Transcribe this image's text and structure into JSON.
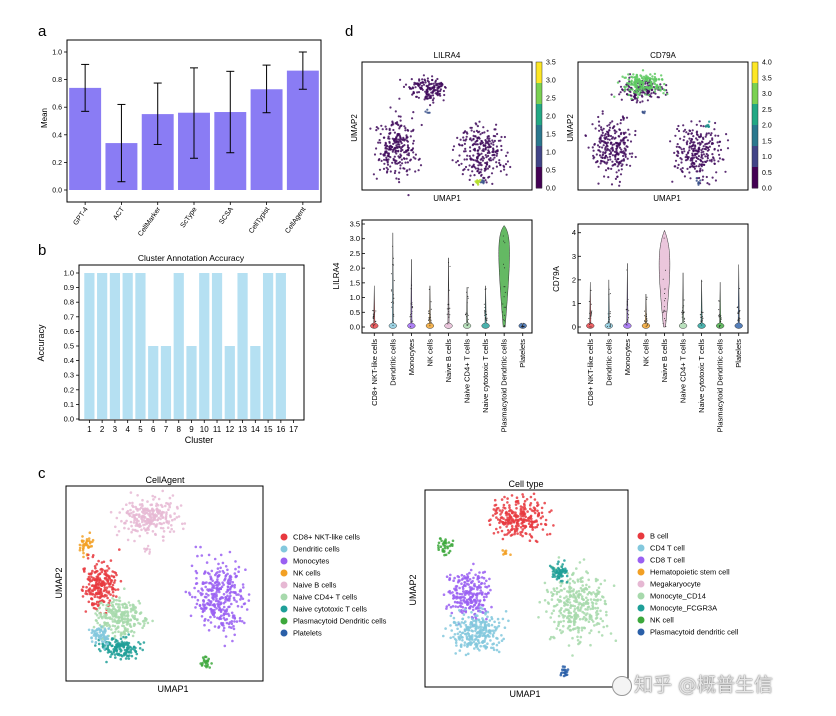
{
  "panels": {
    "a": {
      "letter": "a"
    },
    "b": {
      "letter": "b"
    },
    "c": {
      "letter": "c"
    },
    "d": {
      "letter": "d"
    }
  },
  "watermark": {
    "text": "知乎 @概普生信"
  },
  "colors": {
    "bar_a": "#8a7cf4",
    "bar_b": "#a8daf0",
    "cellagent_palette": [
      "#e8393f",
      "#83c8dd",
      "#9a60f2",
      "#f2a024",
      "#e6b8d3",
      "#a7d9ac",
      "#1e9f98",
      "#3da83c",
      "#2a5fa8"
    ],
    "celltype_palette": [
      "#e8393f",
      "#83c8dd",
      "#9a60f2",
      "#f2a024",
      "#e6b8d3",
      "#a7d9ac",
      "#1e9f98",
      "#3da83c",
      "#2a5fa8"
    ]
  },
  "chart_data": [
    {
      "id": "a",
      "type": "bar",
      "title": "",
      "categories": [
        "GPT-4",
        "ACT",
        "CellMarker",
        "ScType",
        "SCSA",
        "CellTypist",
        "CellAgent"
      ],
      "values": [
        0.74,
        0.34,
        0.55,
        0.56,
        0.565,
        0.73,
        0.865
      ],
      "err_low": [
        0.57,
        0.06,
        0.33,
        0.23,
        0.27,
        0.56,
        0.73
      ],
      "err_high": [
        0.91,
        0.62,
        0.775,
        0.885,
        0.86,
        0.905,
        1.0
      ],
      "xlabel": "",
      "ylabel": "Mean",
      "ylim": [
        0,
        1.0
      ],
      "yticks": [
        "0.0",
        "0.2",
        "0.4",
        "0.6",
        "0.8",
        "1.0"
      ]
    },
    {
      "id": "b",
      "type": "bar",
      "title": "Cluster Annotation Accuracy",
      "categories": [
        "1",
        "2",
        "3",
        "4",
        "5",
        "6",
        "7",
        "8",
        "9",
        "10",
        "11",
        "12",
        "13",
        "14",
        "15",
        "16",
        "17"
      ],
      "values": [
        1.0,
        1.0,
        1.0,
        1.0,
        1.0,
        0.5,
        0.5,
        1.0,
        0.5,
        1.0,
        1.0,
        0.5,
        1.0,
        0.5,
        1.0,
        1.0,
        0.0
      ],
      "xlabel": "Cluster",
      "ylabel": "Accuracy",
      "ylim": [
        0,
        1.0
      ],
      "yticks": [
        "0.0",
        "0.1",
        "0.2",
        "0.3",
        "0.4",
        "0.5",
        "0.6",
        "0.7",
        "0.8",
        "0.9",
        "1.0"
      ]
    },
    {
      "id": "c1",
      "type": "scatter",
      "title": "CellAgent",
      "xlabel": "UMAP1",
      "ylabel": "UMAP2",
      "legend": [
        "CD8+ NKT-like cells",
        "Dendritic cells",
        "Monocytes",
        "NK cells",
        "Naive B cells",
        "Naive CD4+ T cells",
        "Naive cytotoxic T cells",
        "Plasmacytoid Dendritic cells",
        "Platelets"
      ],
      "legend_colors": [
        "#e8393f",
        "#83c8dd",
        "#9a60f2",
        "#f2a024",
        "#e6b8d3",
        "#a7d9ac",
        "#1e9f98",
        "#3da83c",
        "#2a5fa8"
      ]
    },
    {
      "id": "c2",
      "type": "scatter",
      "title": "Cell type",
      "xlabel": "UMAP1",
      "ylabel": "UMAP2",
      "legend": [
        "B cell",
        "CD4 T cell",
        "CD8 T cell",
        "Hematopoietic stem cell",
        "Megakaryocyte",
        "Monocyte_CD14",
        "Monocyte_FCGR3A",
        "NK cell",
        "Plasmacytoid dendritic cell"
      ],
      "legend_colors": [
        "#e8393f",
        "#83c8dd",
        "#9a60f2",
        "#f2a024",
        "#e6b8d3",
        "#a7d9ac",
        "#1e9f98",
        "#3da83c",
        "#2a5fa8"
      ]
    },
    {
      "id": "d1",
      "type": "scatter",
      "title": "LILRA4",
      "xlabel": "UMAP1",
      "ylabel": "UMAP2",
      "colorbar_ticks": [
        "0.0",
        "0.5",
        "1.0",
        "1.5",
        "2.0",
        "2.5",
        "3.0",
        "3.5"
      ],
      "colorbar_range": [
        0,
        3.5
      ]
    },
    {
      "id": "d2",
      "type": "scatter",
      "title": "CD79A",
      "xlabel": "UMAP1",
      "ylabel": "UMAP2",
      "colorbar_ticks": [
        "0.0",
        "0.5",
        "1.0",
        "1.5",
        "2.0",
        "2.5",
        "3.0",
        "3.5",
        "4.0"
      ],
      "colorbar_range": [
        0,
        4.0
      ]
    },
    {
      "id": "d3",
      "type": "violin",
      "title": "",
      "ylabel": "LILRA4",
      "categories": [
        "CD8+ NKT-like cells",
        "Dendritic cells",
        "Monocytes",
        "NK cells",
        "Naive B cells",
        "Naive CD4+ T cells",
        "Naive cytotoxic T cells",
        "Plasmacytoid Dendritic cells",
        "Platelets"
      ],
      "max_values": [
        1.4,
        3.2,
        2.3,
        1.4,
        2.35,
        1.35,
        1.4,
        3.45,
        0.05
      ],
      "median_values": [
        0.0,
        0.0,
        0.0,
        0.0,
        0.0,
        0.0,
        0.0,
        2.8,
        0.0
      ],
      "yticks": [
        "0.0",
        "0.5",
        "1.0",
        "1.5",
        "2.0",
        "2.5",
        "3.0",
        "3.5"
      ],
      "ylim": [
        0,
        3.5
      ],
      "colors": [
        "#e8393f",
        "#83c8dd",
        "#9a60f2",
        "#f2a024",
        "#e6b8d3",
        "#a7d9ac",
        "#1e9f98",
        "#3da83c",
        "#2a5fa8"
      ]
    },
    {
      "id": "d4",
      "type": "violin",
      "title": "",
      "ylabel": "CD79A",
      "categories": [
        "CD8+ NKT-like cells",
        "Dendritic cells",
        "Monocytes",
        "NK cells",
        "Naive B cells",
        "Naive CD4+ T cells",
        "Naive cytotoxic T cells",
        "Plasmacytoid Dendritic cells",
        "Platelets"
      ],
      "max_values": [
        1.9,
        2.0,
        2.7,
        1.4,
        4.1,
        2.3,
        2.0,
        1.9,
        2.65
      ],
      "median_values": [
        0.0,
        0.0,
        0.0,
        0.0,
        2.9,
        0.0,
        0.0,
        0.4,
        0.5
      ],
      "yticks": [
        "0",
        "1",
        "2",
        "3",
        "4"
      ],
      "ylim": [
        0,
        4.2
      ],
      "colors": [
        "#e8393f",
        "#83c8dd",
        "#9a60f2",
        "#f2a024",
        "#e6b8d3",
        "#a7d9ac",
        "#1e9f98",
        "#3da83c",
        "#2a5fa8"
      ]
    }
  ]
}
